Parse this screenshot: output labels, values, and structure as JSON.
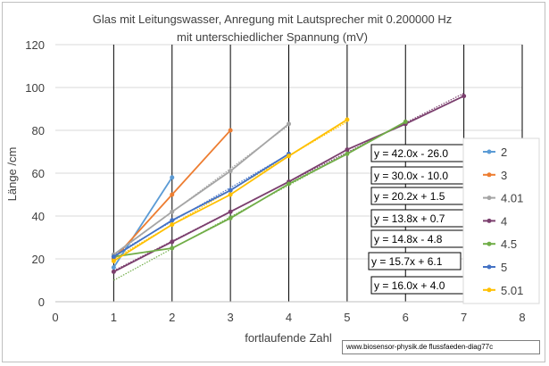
{
  "chart_data": {
    "type": "line",
    "title": "Glas mit Leitungswasser, Anregung mit Lautsprecher mit  0.200000 Hz",
    "subtitle": "mit unterschiedlicher Spannung  (mV)",
    "xlabel": "fortlaufende Zahl",
    "ylabel": "Länge /cm",
    "xlim": [
      0,
      8
    ],
    "ylim": [
      0,
      120
    ],
    "xticks": [
      0,
      1,
      2,
      3,
      4,
      5,
      6,
      7,
      8
    ],
    "yticks": [
      0,
      20,
      40,
      60,
      80,
      100,
      120
    ],
    "grid": true,
    "legend_position": "right",
    "series": [
      {
        "name": "2",
        "color": "#5b9bd5",
        "x": [
          1,
          2
        ],
        "y": [
          16,
          58
        ],
        "trend": {
          "slope": 42.0,
          "intercept": -26.0
        }
      },
      {
        "name": "3",
        "color": "#ed7d31",
        "x": [
          1,
          2,
          3
        ],
        "y": [
          20,
          50,
          80
        ],
        "trend": {
          "slope": 30.0,
          "intercept": -10.0
        }
      },
      {
        "name": "4.01",
        "color": "#a5a5a5",
        "x": [
          1,
          2,
          3,
          4
        ],
        "y": [
          22,
          42,
          61,
          83
        ],
        "trend": {
          "slope": 20.2,
          "intercept": 1.5
        }
      },
      {
        "name": "4",
        "color": "#7b3f6e",
        "x": [
          1,
          2,
          3,
          4,
          5,
          6,
          7
        ],
        "y": [
          14,
          28,
          42,
          56,
          71,
          83,
          96
        ],
        "trend": {
          "slope": 13.8,
          "intercept": 0.7
        }
      },
      {
        "name": "4.5",
        "color": "#70ad47",
        "x": [
          1,
          2,
          3,
          4,
          5,
          6
        ],
        "y": [
          21,
          25,
          39,
          55,
          69,
          84
        ],
        "trend": {
          "slope": 14.8,
          "intercept": -4.8
        }
      },
      {
        "name": "5",
        "color": "#4472c4",
        "x": [
          1,
          2,
          3,
          4
        ],
        "y": [
          21,
          38,
          52,
          69
        ],
        "trend": {
          "slope": 15.7,
          "intercept": 6.1
        }
      },
      {
        "name": "5.01",
        "color": "#ffc000",
        "x": [
          1,
          2,
          3,
          4,
          5
        ],
        "y": [
          19,
          36,
          50,
          68,
          85
        ],
        "trend": {
          "slope": 16.0,
          "intercept": 4.0
        }
      }
    ],
    "equations": [
      "y = 42.0x - 26.0",
      "y = 30.0x - 10.0",
      "y = 20.2x + 1.5",
      "y = 13.8x + 0.7",
      "y = 14.8x - 4.8",
      "y = 15.7x + 6.1",
      "y = 16.0x + 4.0"
    ]
  },
  "watermark": "www.biosensor-physik.de  flussfaeden-diag77c"
}
